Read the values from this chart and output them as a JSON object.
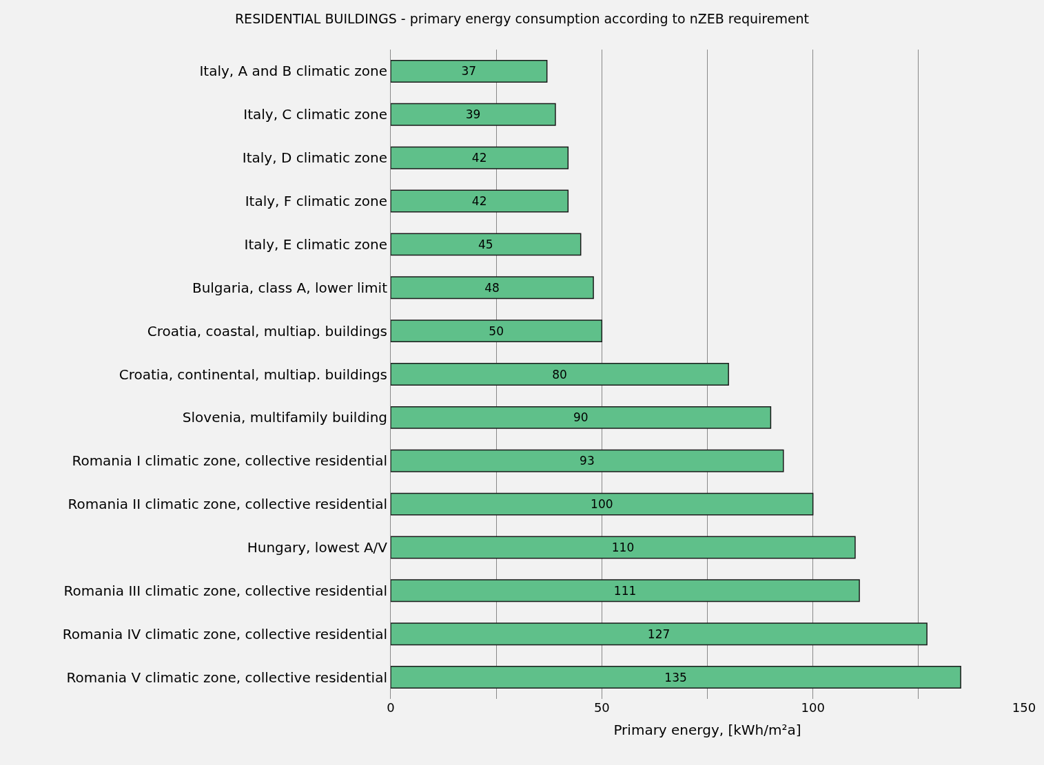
{
  "chart_data": {
    "type": "bar",
    "orientation": "horizontal",
    "title": "RESIDENTIAL BUILDINGS - primary energy consumption according to nZEB requirement",
    "xlabel": "Primary energy, [kWh/m²a]",
    "categories": [
      "Italy, A and B climatic zone",
      "Italy, C climatic zone",
      "Italy, D climatic zone",
      "Italy, F climatic zone",
      "Italy, E climatic zone",
      "Bulgaria, class A, lower limit",
      "Croatia, coastal, multiap. buildings",
      "Croatia, continental, multiap. buildings",
      "Slovenia, multifamily building",
      "Romania I climatic zone, collective residential",
      "Romania II climatic zone, collective residential",
      "Hungary, lowest A/V",
      "Romania III climatic zone, collective residential",
      "Romania IV climatic zone, collective residential",
      "Romania V climatic zone, collective residential"
    ],
    "values": [
      37,
      39,
      42,
      42,
      45,
      48,
      50,
      80,
      90,
      93,
      100,
      110,
      111,
      127,
      135
    ],
    "color": "#5fc08a",
    "xlim": [
      0,
      150
    ],
    "xticks": [
      0,
      {
        "value": 25,
        "label": null
      },
      50,
      {
        "value": 75,
        "label": null
      },
      100,
      {
        "value": 125,
        "label": null
      },
      150
    ],
    "grid": "x",
    "data_labels": true
  }
}
